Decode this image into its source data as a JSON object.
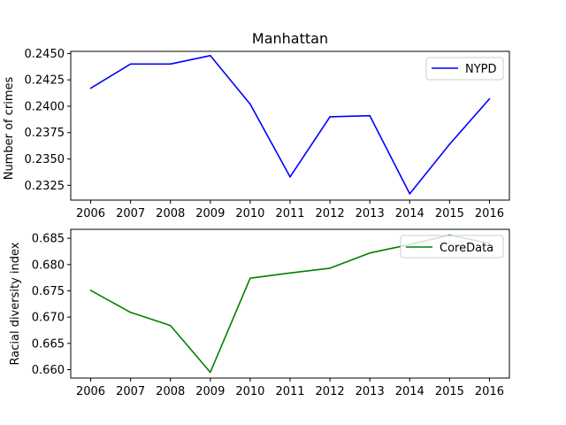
{
  "chart_data": [
    {
      "type": "line",
      "title": "Manhattan",
      "xlabel": "",
      "ylabel": "Number of crimes",
      "x": [
        2006,
        2007,
        2008,
        2009,
        2010,
        2011,
        2012,
        2013,
        2014,
        2015,
        2016
      ],
      "xlim": [
        2005.5,
        2016.5
      ],
      "ylim": [
        0.2311,
        0.2452
      ],
      "yticks": [
        "0.2325",
        "0.2350",
        "0.2375",
        "0.2400",
        "0.2425",
        "0.2450"
      ],
      "yticks_values": [
        0.2325,
        0.235,
        0.2375,
        0.24,
        0.2425,
        0.245
      ],
      "legend_position": "top-right",
      "grid": false,
      "series": [
        {
          "name": "NYPD",
          "color": "#0000ff",
          "values": [
            0.2417,
            0.244,
            0.244,
            0.2448,
            0.2402,
            0.2333,
            0.239,
            0.2391,
            0.2317,
            0.2364,
            0.2407
          ]
        }
      ]
    },
    {
      "type": "line",
      "title": "",
      "xlabel": "",
      "ylabel": "Racial diversity index",
      "x": [
        2006,
        2007,
        2008,
        2009,
        2010,
        2011,
        2012,
        2013,
        2014,
        2015,
        2016
      ],
      "xlim": [
        2005.5,
        2016.5
      ],
      "ylim": [
        0.6584,
        0.6867
      ],
      "yticks": [
        "0.660",
        "0.665",
        "0.670",
        "0.675",
        "0.680",
        "0.685"
      ],
      "yticks_values": [
        0.66,
        0.665,
        0.67,
        0.675,
        0.68,
        0.685
      ],
      "legend_position": "top-right",
      "grid": false,
      "series": [
        {
          "name": "CoreData",
          "color": "#008000",
          "values": [
            0.6751,
            0.6709,
            0.6684,
            0.6595,
            0.6774,
            0.6784,
            0.6793,
            0.6822,
            0.6838,
            0.6856,
            0.684
          ]
        }
      ]
    }
  ]
}
